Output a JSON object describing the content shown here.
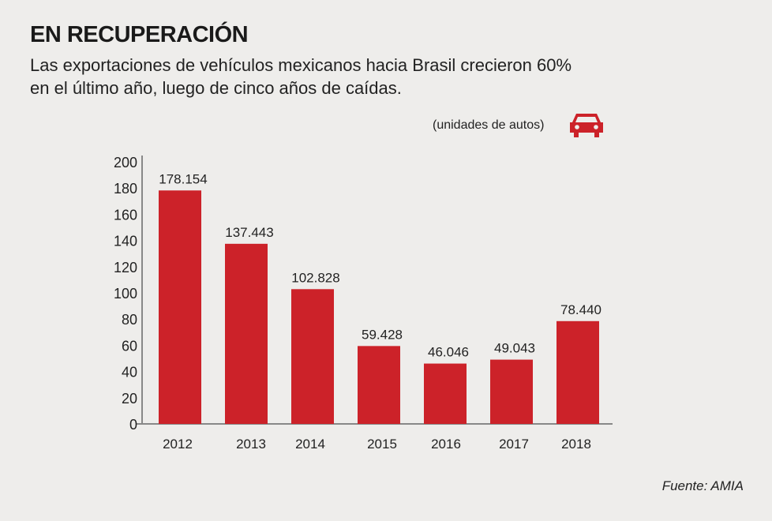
{
  "chart_data": {
    "type": "bar",
    "title": "EN RECUPERACIÓN",
    "subtitle": "Las exportaciones de vehículos mexicanos hacia Brasil crecieron 60% en el último año, luego de cinco años de caídas.",
    "units_label": "(unidades de autos)",
    "units_icon": "car-icon",
    "categories": [
      "2012",
      "2013",
      "2014",
      "2015",
      "2016",
      "2017",
      "2018"
    ],
    "values": [
      178.154,
      137.443,
      102.828,
      59.428,
      46.046,
      49.043,
      78.44
    ],
    "data_labels": [
      "178.154",
      "137.443",
      "102.828",
      "59.428",
      "46.046",
      "49.043",
      "78.440"
    ],
    "ylim": [
      0,
      200
    ],
    "yticks": [
      "0",
      "20",
      "40",
      "60",
      "80",
      "100",
      "120",
      "140",
      "160",
      "180",
      "200"
    ],
    "xlabel": "",
    "ylabel": "",
    "grid": false,
    "bar_color": "#cc2229",
    "source": "Fuente: AMIA"
  }
}
